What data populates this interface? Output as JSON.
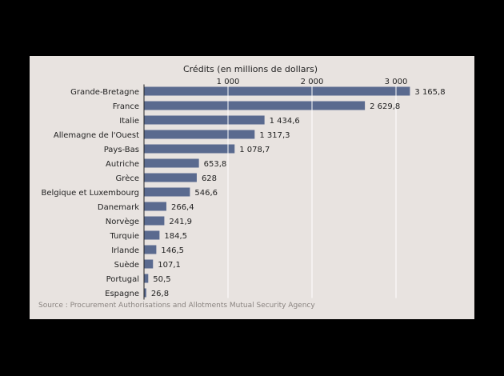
{
  "chart_data": {
    "type": "bar",
    "orientation": "horizontal",
    "title": "Crédits (en millions de dollars)",
    "categories": [
      "Grande-Bretagne",
      "France",
      "Italie",
      "Allemagne de l'Ouest",
      "Pays-Bas",
      "Autriche",
      "Grèce",
      "Belgique et Luxembourg",
      "Danemark",
      "Norvège",
      "Turquie",
      "Irlande",
      "Suède",
      "Portugal",
      "Espagne"
    ],
    "values": [
      3165.8,
      2629.8,
      1434.6,
      1317.3,
      1078.7,
      653.8,
      628,
      546.6,
      266.4,
      241.9,
      184.5,
      146.5,
      107.1,
      50.5,
      26.8
    ],
    "value_labels": [
      "3 165,8",
      "2 629,8",
      "1 434,6",
      "1 317,3",
      "1 078,7",
      "653,8",
      "628",
      "546,6",
      "266,4",
      "241,9",
      "184,5",
      "146,5",
      "107,1",
      "50,5",
      "26,8"
    ],
    "xticks": [
      1000,
      2000,
      3000
    ],
    "xtick_labels": [
      "1 000",
      "2 000",
      "3 000"
    ],
    "xlim": [
      0,
      3400
    ],
    "axis_position": "top",
    "grid": true,
    "bar_color": "#5a6a8f",
    "source": "Source : Procurement Authorisations and Allotments Mutual Security Agency"
  }
}
